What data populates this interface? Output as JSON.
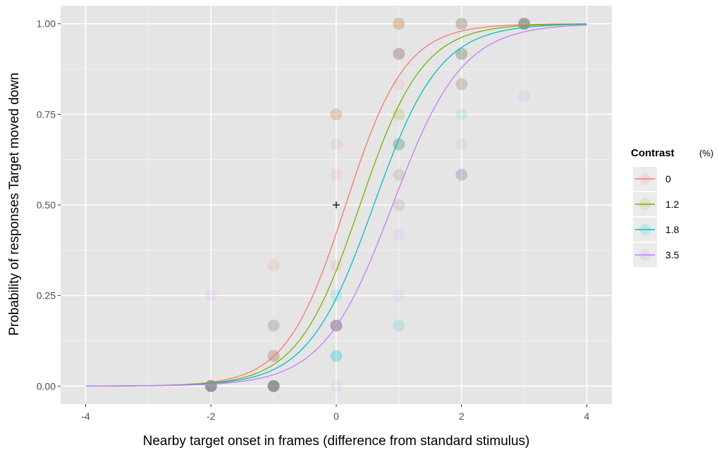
{
  "chart_data": {
    "type": "line",
    "title": "",
    "xlabel": "Nearby target onset in frames (difference from standard stimulus)",
    "ylabel": "Probability of responses Target moved down",
    "xlim": [
      -4.4,
      4.4
    ],
    "ylim": [
      -0.05,
      1.05
    ],
    "x_ticks": [
      {
        "value": -4,
        "label": "-4"
      },
      {
        "value": -2,
        "label": "-2"
      },
      {
        "value": 0,
        "label": "0"
      },
      {
        "value": 2,
        "label": "2"
      },
      {
        "value": 4,
        "label": "4"
      }
    ],
    "y_ticks": [
      {
        "value": 0,
        "label": "0.00"
      },
      {
        "value": 0.25,
        "label": "0.25"
      },
      {
        "value": 0.5,
        "label": "0.50"
      },
      {
        "value": 0.75,
        "label": "0.75"
      },
      {
        "value": 1,
        "label": "1.00"
      }
    ],
    "grid": true,
    "background": "#e5e5e5",
    "legend": {
      "title": "Contrast",
      "unit": "(%)",
      "placement": "right",
      "entries": [
        "0",
        "1.2",
        "1.8",
        "3.5"
      ]
    },
    "series": [
      {
        "name": "0",
        "color": "#f8766d",
        "curve": {
          "x_start": -4,
          "x_end": 4,
          "midpoint": 0.15,
          "slope": 2.1
        }
      },
      {
        "name": "1.2",
        "color": "#7cae00",
        "curve": {
          "x_start": -4,
          "x_end": 4,
          "midpoint": 0.38,
          "slope": 2.0
        }
      },
      {
        "name": "1.8",
        "color": "#00bfc4",
        "curve": {
          "x_start": -4,
          "x_end": 4,
          "midpoint": 0.6,
          "slope": 1.9
        }
      },
      {
        "name": "3.5",
        "color": "#c77cff",
        "curve": {
          "x_start": -4,
          "x_end": 4,
          "midpoint": 0.9,
          "slope": 1.8
        }
      }
    ],
    "points": [
      {
        "x": -2,
        "y": 0.25,
        "color": "#c77cff",
        "opacity": 0.12
      },
      {
        "x": -2,
        "y": 0,
        "color": "#55605c",
        "opacity": 0.6
      },
      {
        "x": -1,
        "y": 0.333,
        "color": "#f8766d",
        "opacity": 0.15
      },
      {
        "x": -1,
        "y": 0.167,
        "color": "#8a7a72",
        "opacity": 0.3
      },
      {
        "x": -1,
        "y": 0.083,
        "color": "#a0705a",
        "opacity": 0.35
      },
      {
        "x": -1,
        "y": 0,
        "color": "#55605c",
        "opacity": 0.6
      },
      {
        "x": 0,
        "y": 0.75,
        "color": "#c8905a",
        "opacity": 0.35
      },
      {
        "x": 0,
        "y": 0.667,
        "color": "#f8766d",
        "opacity": 0.12
      },
      {
        "x": 0,
        "y": 0.583,
        "color": "#f8766d",
        "opacity": 0.12
      },
      {
        "x": 0,
        "y": 0.333,
        "color": "#f8766d",
        "opacity": 0.15
      },
      {
        "x": 0,
        "y": 0.25,
        "color": "#00bfc4",
        "opacity": 0.15
      },
      {
        "x": 0,
        "y": 0.167,
        "color": "#6a5c70",
        "opacity": 0.45
      },
      {
        "x": 0,
        "y": 0.083,
        "color": "#00bfc4",
        "opacity": 0.3
      },
      {
        "x": 0,
        "y": 0,
        "color": "#c77cff",
        "opacity": 0.12
      },
      {
        "x": 1,
        "y": 1,
        "color": "#c8905a",
        "opacity": 0.45
      },
      {
        "x": 1,
        "y": 0.917,
        "color": "#9a7a70",
        "opacity": 0.45
      },
      {
        "x": 1,
        "y": 0.833,
        "color": "#f8766d",
        "opacity": 0.12
      },
      {
        "x": 1,
        "y": 0.75,
        "color": "#7cae00",
        "opacity": 0.2
      },
      {
        "x": 1,
        "y": 0.667,
        "color": "#5a9a7a",
        "opacity": 0.4
      },
      {
        "x": 1,
        "y": 0.583,
        "color": "#a09a8a",
        "opacity": 0.25
      },
      {
        "x": 1,
        "y": 0.5,
        "color": "#a0a0a0",
        "opacity": 0.25
      },
      {
        "x": 1,
        "y": 0.417,
        "color": "#c77cff",
        "opacity": 0.12
      },
      {
        "x": 1,
        "y": 0.25,
        "color": "#c77cff",
        "opacity": 0.1
      },
      {
        "x": 1,
        "y": 0.167,
        "color": "#00bfc4",
        "opacity": 0.15
      },
      {
        "x": 2,
        "y": 1,
        "color": "#9a8a80",
        "opacity": 0.45
      },
      {
        "x": 2,
        "y": 0.917,
        "color": "#7a8a70",
        "opacity": 0.45
      },
      {
        "x": 2,
        "y": 0.833,
        "color": "#a08a7a",
        "opacity": 0.35
      },
      {
        "x": 2,
        "y": 0.75,
        "color": "#00bfc4",
        "opacity": 0.12
      },
      {
        "x": 2,
        "y": 0.667,
        "color": "#c77cff",
        "opacity": 0.12
      },
      {
        "x": 2,
        "y": 0.583,
        "color": "#5a7aa0",
        "opacity": 0.3
      },
      {
        "x": 3,
        "y": 1,
        "color": "#55605c",
        "opacity": 0.5
      },
      {
        "x": 3,
        "y": 0.8,
        "color": "#c77cff",
        "opacity": 0.12
      }
    ],
    "marker": {
      "x": 0,
      "y": 0.5,
      "symbol": "+"
    }
  }
}
